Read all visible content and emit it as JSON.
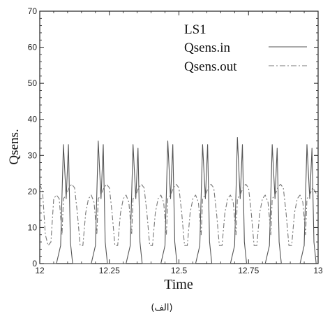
{
  "chart_data": {
    "type": "line",
    "title": "",
    "xlabel": "Time",
    "ylabel": "Qsens.",
    "xlim": [
      12,
      13
    ],
    "ylim": [
      0,
      70
    ],
    "x_ticks": [
      12,
      12.25,
      12.5,
      12.75,
      13
    ],
    "x_tick_labels": [
      "12",
      "12.25",
      "12.5",
      "12.75",
      "13"
    ],
    "y_ticks": [
      0,
      10,
      20,
      30,
      40,
      50,
      60,
      70
    ],
    "y_tick_labels": [
      "0",
      "10",
      "20",
      "30",
      "40",
      "50",
      "60",
      "70"
    ],
    "legend_title": "LS1",
    "legend_position": "top-right",
    "grid": false,
    "series": [
      {
        "name": "Qsens.in",
        "style": "solid",
        "color": "#555555",
        "x": [
          12.0,
          12.06,
          12.075,
          12.085,
          12.095,
          12.103,
          12.11,
          12.118,
          12.135,
          12.185,
          12.2,
          12.21,
          12.22,
          12.228,
          12.235,
          12.243,
          12.26,
          12.31,
          12.325,
          12.335,
          12.345,
          12.353,
          12.36,
          12.368,
          12.385,
          12.435,
          12.45,
          12.46,
          12.47,
          12.478,
          12.485,
          12.493,
          12.51,
          12.56,
          12.575,
          12.585,
          12.595,
          12.603,
          12.61,
          12.618,
          12.635,
          12.685,
          12.7,
          12.71,
          12.72,
          12.728,
          12.735,
          12.743,
          12.76,
          12.81,
          12.825,
          12.835,
          12.845,
          12.853,
          12.86,
          12.868,
          12.885,
          12.935,
          12.95,
          12.96,
          12.97,
          12.978,
          12.985,
          12.993,
          13.0
        ],
        "y": [
          0,
          0,
          5,
          33,
          18,
          33,
          6,
          0,
          0,
          0,
          5,
          34,
          18,
          33,
          6,
          0,
          0,
          0,
          5,
          33,
          18,
          32,
          6,
          0,
          0,
          0,
          5,
          34,
          18,
          33,
          6,
          0,
          0,
          0,
          5,
          33,
          18,
          33,
          6,
          0,
          0,
          0,
          5,
          35,
          18,
          33,
          6,
          0,
          0,
          0,
          5,
          33,
          18,
          32,
          6,
          0,
          0,
          0,
          5,
          33,
          18,
          32,
          6,
          0,
          0
        ]
      },
      {
        "name": "Qsens.out",
        "style": "dashdot",
        "color": "#777777",
        "x": [
          12.0,
          12.01,
          12.02,
          12.03,
          12.04,
          12.05,
          12.06,
          12.07,
          12.08,
          12.085,
          12.095,
          12.105,
          12.115,
          12.125,
          12.135,
          12.145,
          12.155,
          12.165,
          12.175,
          12.185,
          12.195,
          12.205,
          12.21,
          12.22,
          12.23,
          12.24,
          12.25,
          12.26,
          12.27,
          12.28,
          12.29,
          12.3,
          12.31,
          12.32,
          12.33,
          12.335,
          12.345,
          12.355,
          12.365,
          12.375,
          12.385,
          12.395,
          12.405,
          12.415,
          12.425,
          12.435,
          12.445,
          12.455,
          12.46,
          12.47,
          12.48,
          12.49,
          12.5,
          12.51,
          12.52,
          12.53,
          12.54,
          12.55,
          12.56,
          12.57,
          12.58,
          12.585,
          12.595,
          12.605,
          12.615,
          12.625,
          12.635,
          12.645,
          12.655,
          12.665,
          12.675,
          12.685,
          12.695,
          12.705,
          12.71,
          12.72,
          12.73,
          12.74,
          12.75,
          12.76,
          12.77,
          12.78,
          12.79,
          12.8,
          12.81,
          12.82,
          12.83,
          12.835,
          12.845,
          12.855,
          12.865,
          12.875,
          12.885,
          12.895,
          12.905,
          12.915,
          12.925,
          12.935,
          12.945,
          12.955,
          12.96,
          12.97,
          12.98,
          12.99,
          13.0
        ],
        "y": [
          22,
          20,
          8,
          5,
          6,
          18,
          19,
          18,
          8,
          18,
          19,
          21,
          22,
          21,
          14,
          5,
          5,
          14,
          18,
          19,
          17,
          8,
          18,
          19,
          21,
          22,
          21,
          14,
          5,
          5,
          14,
          18,
          19,
          17,
          8,
          18,
          19,
          21,
          22,
          21,
          14,
          5,
          5,
          14,
          18,
          19,
          17,
          8,
          18,
          19,
          21,
          22,
          21,
          14,
          5,
          5,
          14,
          18,
          19,
          17,
          8,
          18,
          19,
          21,
          22,
          21,
          14,
          5,
          5,
          14,
          18,
          19,
          17,
          8,
          18,
          19,
          21,
          22,
          21,
          14,
          5,
          5,
          14,
          18,
          19,
          17,
          8,
          18,
          19,
          21,
          22,
          21,
          14,
          5,
          5,
          14,
          18,
          19,
          17,
          8,
          18,
          19,
          21,
          20,
          18
        ]
      }
    ]
  },
  "caption": "(الف)"
}
